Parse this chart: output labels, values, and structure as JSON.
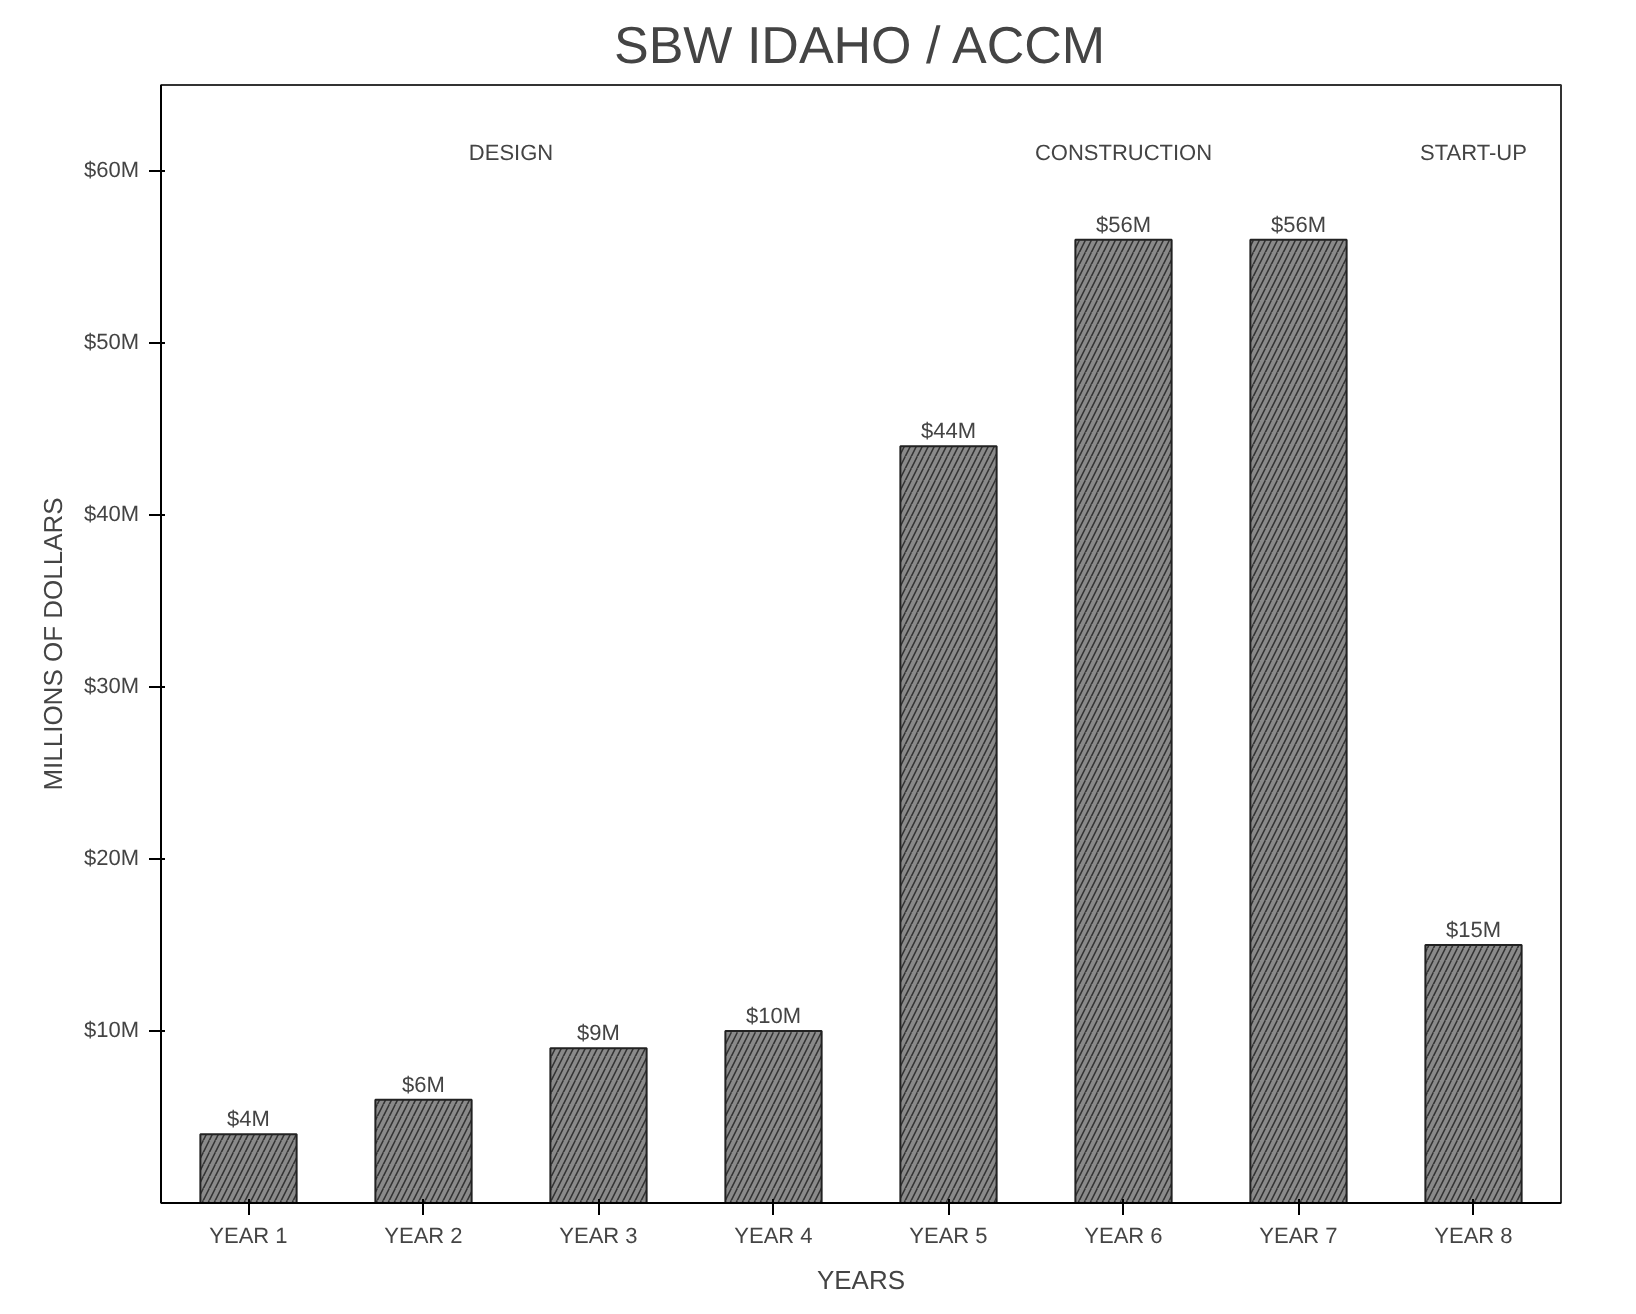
{
  "chart_data": {
    "type": "bar",
    "title": "SBW IDAHO / ACCM",
    "xlabel": "YEARS",
    "ylabel": "MILLIONS OF DOLLARS",
    "categories": [
      "YEAR 1",
      "YEAR 2",
      "YEAR 3",
      "YEAR 4",
      "YEAR 5",
      "YEAR 6",
      "YEAR 7",
      "YEAR 8"
    ],
    "values": [
      4,
      6,
      9,
      10,
      44,
      56,
      56,
      15
    ],
    "value_labels": [
      "$4M",
      "$6M",
      "$9M",
      "$10M",
      "$44M",
      "$56M",
      "$56M",
      "$15M"
    ],
    "color": "#8a8a8a",
    "ylim": [
      0,
      65
    ],
    "yticks": [
      {
        "value": 10,
        "label": "$10M"
      },
      {
        "value": 20,
        "label": "$20M"
      },
      {
        "value": 30,
        "label": "$30M"
      },
      {
        "value": 40,
        "label": "$40M"
      },
      {
        "value": 50,
        "label": "$50M"
      },
      {
        "value": 60,
        "label": "$60M"
      }
    ],
    "annotations": [
      "DESIGN",
      "CONSTRUCTION",
      "START-UP"
    ],
    "grid": false
  }
}
